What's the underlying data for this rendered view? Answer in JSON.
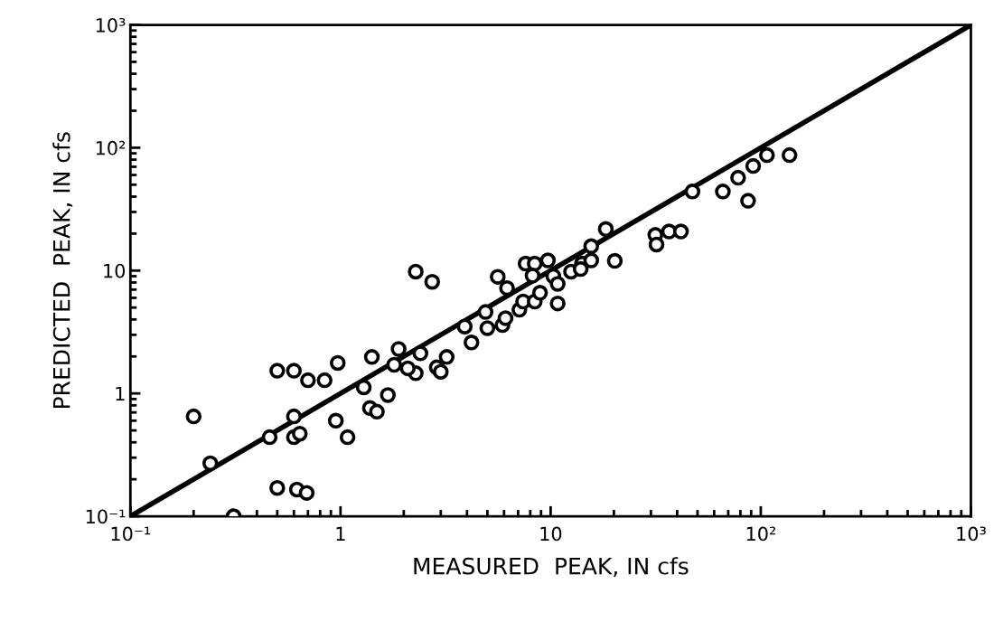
{
  "chart_data": {
    "type": "scatter",
    "xlabel": "MEASURED  PEAK, IN cfs",
    "ylabel": "PREDICTED  PEAK, IN cfs",
    "log": "xy",
    "grid": false,
    "xlim": [
      0.1,
      1000
    ],
    "ylim": [
      0.1,
      1000
    ],
    "xticks": [
      {
        "value": 0.1,
        "label": "10⁻¹"
      },
      1,
      10,
      {
        "value": 100,
        "label": "10²"
      },
      {
        "value": 1000,
        "label": "10³"
      }
    ],
    "yticks": [
      {
        "value": 0.1,
        "label": "10⁻¹"
      },
      1,
      10,
      {
        "value": 100,
        "label": "10²"
      },
      {
        "value": 1000,
        "label": "10³"
      }
    ],
    "series": [
      {
        "marker": "circle",
        "color": "#000000",
        "x": [
          0.2,
          0.24,
          0.31,
          0.46,
          0.5,
          0.6,
          0.6,
          0.6,
          0.64,
          0.5,
          0.62,
          0.69,
          0.7,
          0.84,
          0.97,
          0.95,
          1.08,
          1.29,
          1.41,
          1.38,
          1.49,
          1.68,
          1.89,
          1.8,
          2.28,
          2.4,
          2.28,
          2.73,
          2.87,
          3.0,
          3.2,
          2.09,
          3.9,
          4.2,
          4.9,
          5.0,
          5.6,
          5.9,
          6.2,
          6.1,
          7.1,
          7.4,
          7.6,
          8.4,
          8.2,
          8.4,
          8.9,
          9.7,
          10.3,
          10.8,
          10.8,
          12.5,
          14.1,
          15.6,
          18.3,
          20.2,
          15.6,
          13.9,
          31.5,
          31.9,
          36.6,
          41.7,
          47.3,
          66,
          78,
          87,
          92,
          107,
          137
        ],
        "values": [
          0.65,
          0.27,
          0.1,
          0.44,
          1.53,
          1.53,
          0.65,
          0.44,
          0.47,
          0.17,
          0.165,
          0.155,
          1.28,
          1.28,
          1.77,
          0.6,
          0.44,
          1.12,
          1.98,
          0.76,
          0.71,
          0.97,
          2.3,
          1.71,
          1.46,
          2.12,
          9.8,
          8.1,
          1.63,
          1.5,
          1.98,
          1.6,
          3.5,
          2.6,
          4.6,
          3.4,
          8.9,
          3.6,
          7.2,
          4.1,
          4.8,
          5.6,
          11.4,
          11.4,
          9.1,
          5.6,
          6.6,
          12.1,
          9.0,
          7.8,
          5.4,
          9.8,
          11.4,
          15.8,
          21.8,
          12,
          12.1,
          10.3,
          19.5,
          16.3,
          20.8,
          20.8,
          44,
          44,
          57,
          37,
          71,
          87,
          87
        ]
      },
      {
        "type": "line",
        "marker": "none",
        "color": "#000000",
        "x": [
          0.1,
          1000
        ],
        "values": [
          0.1,
          1000
        ]
      }
    ]
  }
}
